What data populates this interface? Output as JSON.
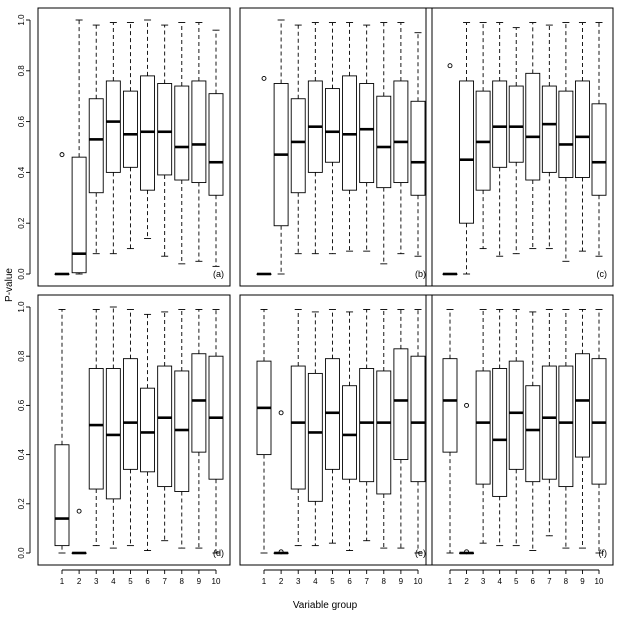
{
  "chart_data": {
    "type": "boxplot",
    "ylabel": "P-value",
    "xlabel": "Variable group",
    "ylim": [
      0,
      1
    ],
    "yticks": [
      "0.0",
      "0.2",
      "0.4",
      "0.6",
      "0.8",
      "1.0"
    ],
    "categories": [
      "1",
      "2",
      "3",
      "4",
      "5",
      "6",
      "7",
      "8",
      "9",
      "10"
    ],
    "panels": [
      {
        "label": "(a)",
        "boxes": [
          {
            "min": 0.0,
            "q1": 0.0,
            "median": 0.0,
            "q3": 0.0,
            "max": 0.0,
            "outliers": [
              0.47
            ]
          },
          {
            "min": 0.0,
            "q1": 0.005,
            "median": 0.08,
            "q3": 0.46,
            "max": 1.0,
            "outliers": []
          },
          {
            "min": 0.08,
            "q1": 0.32,
            "median": 0.53,
            "q3": 0.69,
            "max": 0.98,
            "outliers": []
          },
          {
            "min": 0.08,
            "q1": 0.4,
            "median": 0.6,
            "q3": 0.76,
            "max": 0.99,
            "outliers": []
          },
          {
            "min": 0.1,
            "q1": 0.42,
            "median": 0.55,
            "q3": 0.72,
            "max": 0.99,
            "outliers": []
          },
          {
            "min": 0.14,
            "q1": 0.33,
            "median": 0.56,
            "q3": 0.78,
            "max": 1.0,
            "outliers": []
          },
          {
            "min": 0.07,
            "q1": 0.39,
            "median": 0.56,
            "q3": 0.75,
            "max": 0.98,
            "outliers": []
          },
          {
            "min": 0.04,
            "q1": 0.37,
            "median": 0.5,
            "q3": 0.74,
            "max": 0.99,
            "outliers": []
          },
          {
            "min": 0.05,
            "q1": 0.36,
            "median": 0.51,
            "q3": 0.76,
            "max": 0.99,
            "outliers": []
          },
          {
            "min": 0.03,
            "q1": 0.31,
            "median": 0.44,
            "q3": 0.71,
            "max": 0.96,
            "outliers": []
          }
        ]
      },
      {
        "label": "(b)",
        "boxes": [
          {
            "min": 0.0,
            "q1": 0.0,
            "median": 0.0,
            "q3": 0.0,
            "max": 0.0,
            "outliers": [
              0.77
            ]
          },
          {
            "min": 0.0,
            "q1": 0.19,
            "median": 0.47,
            "q3": 0.75,
            "max": 1.0,
            "outliers": []
          },
          {
            "min": 0.08,
            "q1": 0.32,
            "median": 0.52,
            "q3": 0.69,
            "max": 0.98,
            "outliers": []
          },
          {
            "min": 0.08,
            "q1": 0.4,
            "median": 0.58,
            "q3": 0.76,
            "max": 0.99,
            "outliers": []
          },
          {
            "min": 0.08,
            "q1": 0.44,
            "median": 0.56,
            "q3": 0.73,
            "max": 0.99,
            "outliers": []
          },
          {
            "min": 0.09,
            "q1": 0.33,
            "median": 0.55,
            "q3": 0.78,
            "max": 0.99,
            "outliers": []
          },
          {
            "min": 0.09,
            "q1": 0.36,
            "median": 0.57,
            "q3": 0.75,
            "max": 0.98,
            "outliers": []
          },
          {
            "min": 0.04,
            "q1": 0.34,
            "median": 0.5,
            "q3": 0.7,
            "max": 0.99,
            "outliers": []
          },
          {
            "min": 0.08,
            "q1": 0.36,
            "median": 0.52,
            "q3": 0.76,
            "max": 0.99,
            "outliers": []
          },
          {
            "min": 0.07,
            "q1": 0.31,
            "median": 0.44,
            "q3": 0.68,
            "max": 0.95,
            "outliers": []
          }
        ]
      },
      {
        "label": "(c)",
        "boxes": [
          {
            "min": 0.0,
            "q1": 0.0,
            "median": 0.0,
            "q3": 0.0,
            "max": 0.0,
            "outliers": [
              0.82
            ]
          },
          {
            "min": 0.0,
            "q1": 0.2,
            "median": 0.45,
            "q3": 0.76,
            "max": 0.99,
            "outliers": []
          },
          {
            "min": 0.1,
            "q1": 0.33,
            "median": 0.52,
            "q3": 0.72,
            "max": 0.99,
            "outliers": []
          },
          {
            "min": 0.07,
            "q1": 0.42,
            "median": 0.58,
            "q3": 0.76,
            "max": 0.99,
            "outliers": []
          },
          {
            "min": 0.08,
            "q1": 0.44,
            "median": 0.58,
            "q3": 0.74,
            "max": 0.97,
            "outliers": []
          },
          {
            "min": 0.1,
            "q1": 0.37,
            "median": 0.54,
            "q3": 0.79,
            "max": 0.99,
            "outliers": []
          },
          {
            "min": 0.1,
            "q1": 0.4,
            "median": 0.59,
            "q3": 0.74,
            "max": 0.98,
            "outliers": []
          },
          {
            "min": 0.05,
            "q1": 0.38,
            "median": 0.51,
            "q3": 0.72,
            "max": 0.99,
            "outliers": []
          },
          {
            "min": 0.09,
            "q1": 0.38,
            "median": 0.54,
            "q3": 0.76,
            "max": 0.99,
            "outliers": []
          },
          {
            "min": 0.07,
            "q1": 0.31,
            "median": 0.44,
            "q3": 0.67,
            "max": 0.99,
            "outliers": []
          }
        ]
      },
      {
        "label": "(d)",
        "boxes": [
          {
            "min": 0.0,
            "q1": 0.03,
            "median": 0.14,
            "q3": 0.44,
            "max": 0.99,
            "outliers": []
          },
          {
            "min": 0.0,
            "q1": 0.0,
            "median": 0.0,
            "q3": 0.0,
            "max": 0.0,
            "outliers": [
              0.17
            ]
          },
          {
            "min": 0.03,
            "q1": 0.26,
            "median": 0.52,
            "q3": 0.75,
            "max": 0.99,
            "outliers": []
          },
          {
            "min": 0.02,
            "q1": 0.22,
            "median": 0.48,
            "q3": 0.75,
            "max": 1.0,
            "outliers": []
          },
          {
            "min": 0.03,
            "q1": 0.34,
            "median": 0.53,
            "q3": 0.79,
            "max": 0.99,
            "outliers": []
          },
          {
            "min": 0.01,
            "q1": 0.33,
            "median": 0.49,
            "q3": 0.67,
            "max": 0.97,
            "outliers": []
          },
          {
            "min": 0.05,
            "q1": 0.27,
            "median": 0.55,
            "q3": 0.76,
            "max": 0.98,
            "outliers": []
          },
          {
            "min": 0.02,
            "q1": 0.25,
            "median": 0.5,
            "q3": 0.74,
            "max": 0.99,
            "outliers": []
          },
          {
            "min": 0.02,
            "q1": 0.41,
            "median": 0.62,
            "q3": 0.81,
            "max": 0.99,
            "outliers": []
          },
          {
            "min": 0.0,
            "q1": 0.3,
            "median": 0.55,
            "q3": 0.8,
            "max": 0.99,
            "outliers": []
          }
        ]
      },
      {
        "label": "(e)",
        "boxes": [
          {
            "min": 0.0,
            "q1": 0.4,
            "median": 0.59,
            "q3": 0.78,
            "max": 0.99,
            "outliers": []
          },
          {
            "min": 0.0,
            "q1": 0.0,
            "median": 0.0,
            "q3": 0.0,
            "max": 0.0,
            "outliers": [
              0.57,
              0.005
            ]
          },
          {
            "min": 0.03,
            "q1": 0.26,
            "median": 0.53,
            "q3": 0.76,
            "max": 0.99,
            "outliers": []
          },
          {
            "min": 0.03,
            "q1": 0.21,
            "median": 0.49,
            "q3": 0.73,
            "max": 0.98,
            "outliers": []
          },
          {
            "min": 0.04,
            "q1": 0.34,
            "median": 0.57,
            "q3": 0.79,
            "max": 0.99,
            "outliers": []
          },
          {
            "min": 0.01,
            "q1": 0.3,
            "median": 0.48,
            "q3": 0.68,
            "max": 0.98,
            "outliers": []
          },
          {
            "min": 0.05,
            "q1": 0.29,
            "median": 0.53,
            "q3": 0.75,
            "max": 0.99,
            "outliers": []
          },
          {
            "min": 0.02,
            "q1": 0.24,
            "median": 0.53,
            "q3": 0.74,
            "max": 0.99,
            "outliers": []
          },
          {
            "min": 0.02,
            "q1": 0.38,
            "median": 0.62,
            "q3": 0.83,
            "max": 0.99,
            "outliers": []
          },
          {
            "min": 0.0,
            "q1": 0.29,
            "median": 0.53,
            "q3": 0.8,
            "max": 0.99,
            "outliers": []
          }
        ]
      },
      {
        "label": "(f)",
        "boxes": [
          {
            "min": 0.0,
            "q1": 0.41,
            "median": 0.62,
            "q3": 0.79,
            "max": 0.99,
            "outliers": []
          },
          {
            "min": 0.0,
            "q1": 0.0,
            "median": 0.0,
            "q3": 0.0,
            "max": 0.0,
            "outliers": [
              0.6,
              0.005
            ]
          },
          {
            "min": 0.04,
            "q1": 0.28,
            "median": 0.53,
            "q3": 0.74,
            "max": 0.99,
            "outliers": []
          },
          {
            "min": 0.03,
            "q1": 0.23,
            "median": 0.46,
            "q3": 0.75,
            "max": 0.99,
            "outliers": []
          },
          {
            "min": 0.03,
            "q1": 0.34,
            "median": 0.57,
            "q3": 0.78,
            "max": 0.99,
            "outliers": []
          },
          {
            "min": 0.01,
            "q1": 0.29,
            "median": 0.5,
            "q3": 0.68,
            "max": 0.98,
            "outliers": []
          },
          {
            "min": 0.07,
            "q1": 0.3,
            "median": 0.55,
            "q3": 0.76,
            "max": 0.99,
            "outliers": []
          },
          {
            "min": 0.02,
            "q1": 0.27,
            "median": 0.53,
            "q3": 0.76,
            "max": 0.99,
            "outliers": []
          },
          {
            "min": 0.02,
            "q1": 0.39,
            "median": 0.62,
            "q3": 0.81,
            "max": 0.99,
            "outliers": []
          },
          {
            "min": 0.0,
            "q1": 0.28,
            "median": 0.53,
            "q3": 0.79,
            "max": 0.99,
            "outliers": []
          }
        ]
      }
    ]
  }
}
